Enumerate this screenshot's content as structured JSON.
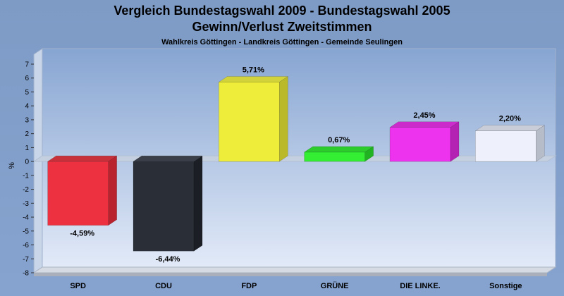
{
  "chart_data": {
    "type": "bar",
    "title": "Vergleich Bundestagswahl 2009 - Bundestagswahl 2005",
    "title2": "Gewinn/Verlust Zweitstimmen",
    "subtitle": "Wahlkreis Göttingen - Landkreis Göttingen - Gemeinde Seulingen",
    "ylabel": "%",
    "ylim": [
      -8,
      7
    ],
    "yticks": [
      7,
      6,
      5,
      4,
      3,
      2,
      1,
      0,
      -1,
      -2,
      -3,
      -4,
      -5,
      -6,
      -7,
      -8
    ],
    "grid": false,
    "categories": [
      "SPD",
      "CDU",
      "FDP",
      "GRÜNE",
      "DIE LINKE.",
      "Sonstige"
    ],
    "values": [
      -4.59,
      -6.44,
      5.71,
      0.67,
      2.45,
      2.2
    ],
    "value_labels": [
      "-4,59%",
      "-6,44%",
      "5,71%",
      "0,67%",
      "2,45%",
      "2,20%"
    ],
    "colors": [
      "#ee3140",
      "#2a2e37",
      "#eeee3a",
      "#33ee33",
      "#ee33ee",
      "#eef1fb"
    ],
    "side_colors": [
      "#b8232e",
      "#1b1e24",
      "#b9b92a",
      "#22b322",
      "#b422b4",
      "#b6bcc8"
    ],
    "top_colors": [
      "#c8303a",
      "#3a3f49",
      "#d2d23a",
      "#2bcc2b",
      "#cc2bcc",
      "#c8cdd8"
    ]
  }
}
